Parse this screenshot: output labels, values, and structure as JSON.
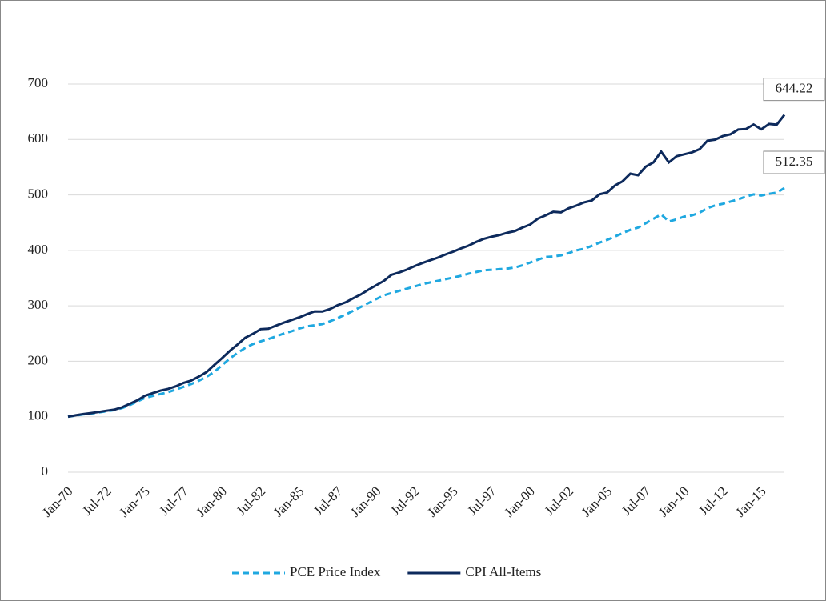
{
  "chart_data": {
    "type": "line",
    "categories": [
      "Jan-70",
      null,
      null,
      null,
      null,
      "Jul-72",
      null,
      null,
      null,
      null,
      "Jan-75",
      null,
      null,
      null,
      null,
      "Jul-77",
      null,
      null,
      null,
      null,
      "Jan-80",
      null,
      null,
      null,
      null,
      "Jul-82",
      null,
      null,
      null,
      null,
      "Jan-85",
      null,
      null,
      null,
      null,
      "Jul-87",
      null,
      null,
      null,
      null,
      "Jan-90",
      null,
      null,
      null,
      null,
      "Jul-92",
      null,
      null,
      null,
      null,
      "Jan-95",
      null,
      null,
      null,
      null,
      "Jul-97",
      null,
      null,
      null,
      null,
      "Jan-00",
      null,
      null,
      null,
      null,
      "Jul-02",
      null,
      null,
      null,
      null,
      "Jan-05",
      null,
      null,
      null,
      null,
      "Jul-07",
      null,
      null,
      null,
      null,
      "Jan-10",
      null,
      null,
      null,
      null,
      "Jul-12",
      null,
      null,
      null,
      null,
      "Jan-15",
      null,
      null,
      null
    ],
    "series": [
      {
        "name": "PCE Price Index",
        "color": "#1fa8e0",
        "dashed": true,
        "values": [
          100,
          102.2,
          104.2,
          106,
          107.8,
          109.8,
          112,
          115.5,
          121,
          127.5,
          134,
          137.5,
          141,
          144.5,
          149,
          154,
          159,
          165,
          172,
          181,
          193,
          205,
          215,
          224,
          231,
          236,
          240,
          245,
          250,
          254,
          259,
          263,
          265,
          267,
          272,
          278,
          284,
          291,
          298,
          305,
          312,
          319,
          323,
          327,
          331,
          335,
          339,
          342,
          345,
          348,
          351,
          354,
          358,
          361,
          364,
          365,
          366,
          367,
          369,
          373,
          378,
          383,
          388,
          389,
          391,
          395,
          400,
          403,
          408,
          414,
          419,
          425,
          431,
          437,
          441,
          449,
          457,
          465,
          452,
          456,
          461,
          463,
          468,
          476,
          481,
          484,
          488,
          492,
          497,
          501,
          499,
          502,
          504,
          512.35
        ]
      },
      {
        "name": "CPI All-Items",
        "color": "#0d2a5c",
        "dashed": false,
        "values": [
          100,
          102.6,
          104.8,
          106.6,
          108.7,
          110.8,
          112.7,
          116.9,
          123.3,
          129.6,
          137.8,
          142.6,
          147.1,
          150.3,
          154.8,
          161.1,
          165.3,
          172.5,
          180.7,
          193.4,
          205.8,
          218.8,
          230.2,
          242.3,
          249.5,
          257.9,
          258.7,
          264.3,
          269.6,
          274.3,
          279.1,
          284.7,
          289.9,
          289.7,
          294.2,
          301.1,
          306.1,
          313.5,
          320.4,
          329.1,
          337,
          345,
          356.1,
          360.3,
          365.3,
          371.7,
          377.2,
          382,
          386.8,
          392.6,
          397.6,
          403.4,
          408.5,
          415.3,
          420.9,
          424.6,
          427.5,
          431.7,
          434.7,
          441,
          446.6,
          457.1,
          463.2,
          469.6,
          468.5,
          475.9,
          480.7,
          486.5,
          489.9,
          501.1,
          504.5,
          516.9,
          524.6,
          538.4,
          535.4,
          551.1,
          558.5,
          578,
          558.5,
          569.8,
          573.3,
          576.7,
          582.5,
          597.6,
          599.7,
          606.1,
          609.3,
          618,
          618.8,
          627,
          618.3,
          628,
          626.7,
          644.22
        ]
      }
    ],
    "ylim": [
      0,
      700
    ],
    "yticks": [
      0,
      100,
      200,
      300,
      400,
      500,
      600,
      700
    ],
    "grid": true
  }
}
